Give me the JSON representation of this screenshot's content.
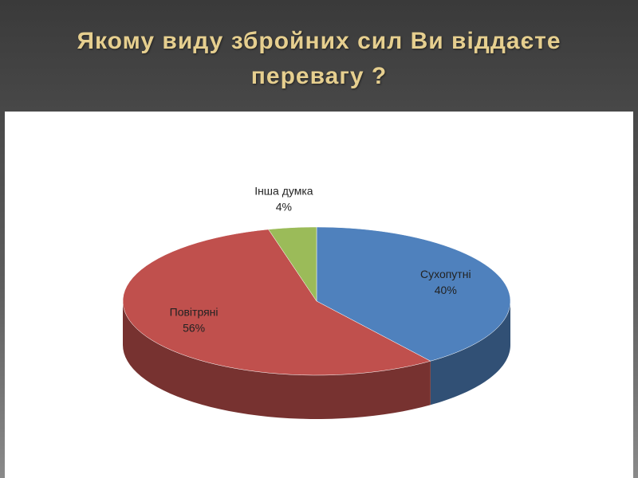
{
  "chart_data": {
    "type": "pie3d",
    "title": "Якому виду збройних сил Ви віддаєте перевагу ?",
    "categories": [
      "Сухопутні",
      "Повітряні",
      "Інша думка"
    ],
    "values": [
      40,
      56,
      4
    ],
    "value_labels": [
      "40%",
      "56%",
      "4%"
    ],
    "colors": [
      "#4f81bd",
      "#c0504d",
      "#9bbb59"
    ]
  }
}
